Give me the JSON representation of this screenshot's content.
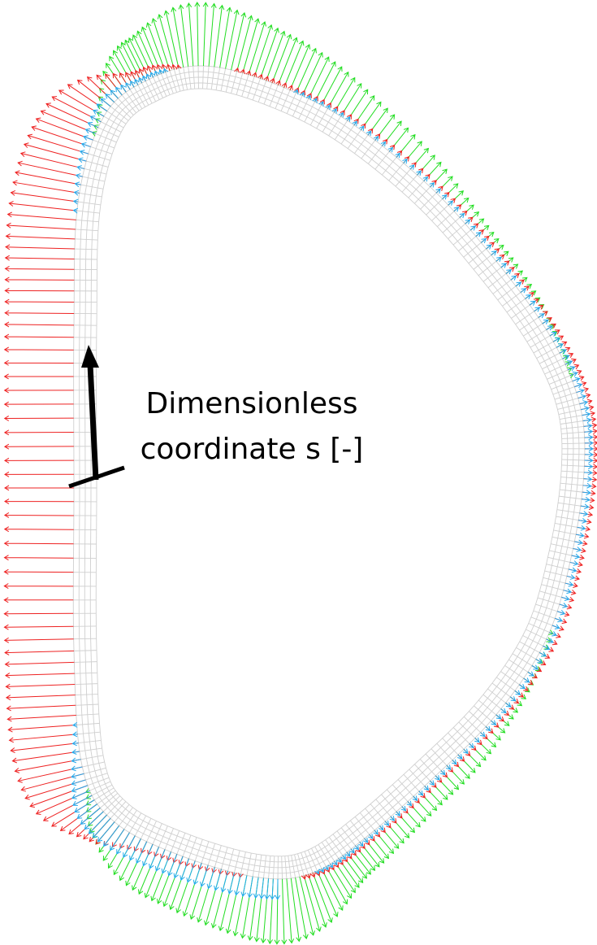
{
  "annotation": {
    "lines": [
      "Dimensionless",
      "coordinate s [-]"
    ]
  }
}
